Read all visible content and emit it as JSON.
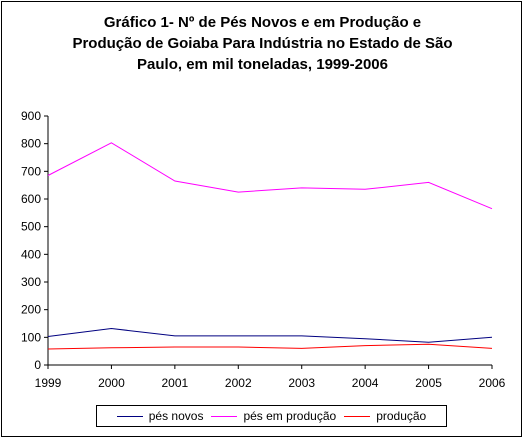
{
  "chart_data": {
    "type": "line",
    "title_lines": [
      "Gráfico 1- Nº de Pés Novos e em Produção e",
      "Produção de Goiaba Para Indústria no Estado de São",
      "Paulo, em mil toneladas, 1999-2006"
    ],
    "x": [
      "1999",
      "2000",
      "2001",
      "2002",
      "2003",
      "2004",
      "2005",
      "2006"
    ],
    "yticks": [
      "0",
      "100",
      "200",
      "300",
      "400",
      "500",
      "600",
      "700",
      "800",
      "900"
    ],
    "ylim": [
      0,
      900
    ],
    "grid": false,
    "legend_position": "bottom",
    "series": [
      {
        "name": "pés novos",
        "color": "#000080",
        "values": [
          103,
          132,
          105,
          105,
          105,
          95,
          82,
          100
        ]
      },
      {
        "name": "pés em produção",
        "color": "#ff00ff",
        "values": [
          685,
          803,
          665,
          625,
          640,
          635,
          660,
          565
        ]
      },
      {
        "name": "produção",
        "color": "#ff0000",
        "values": [
          58,
          62,
          65,
          65,
          60,
          70,
          75,
          60
        ]
      }
    ]
  }
}
